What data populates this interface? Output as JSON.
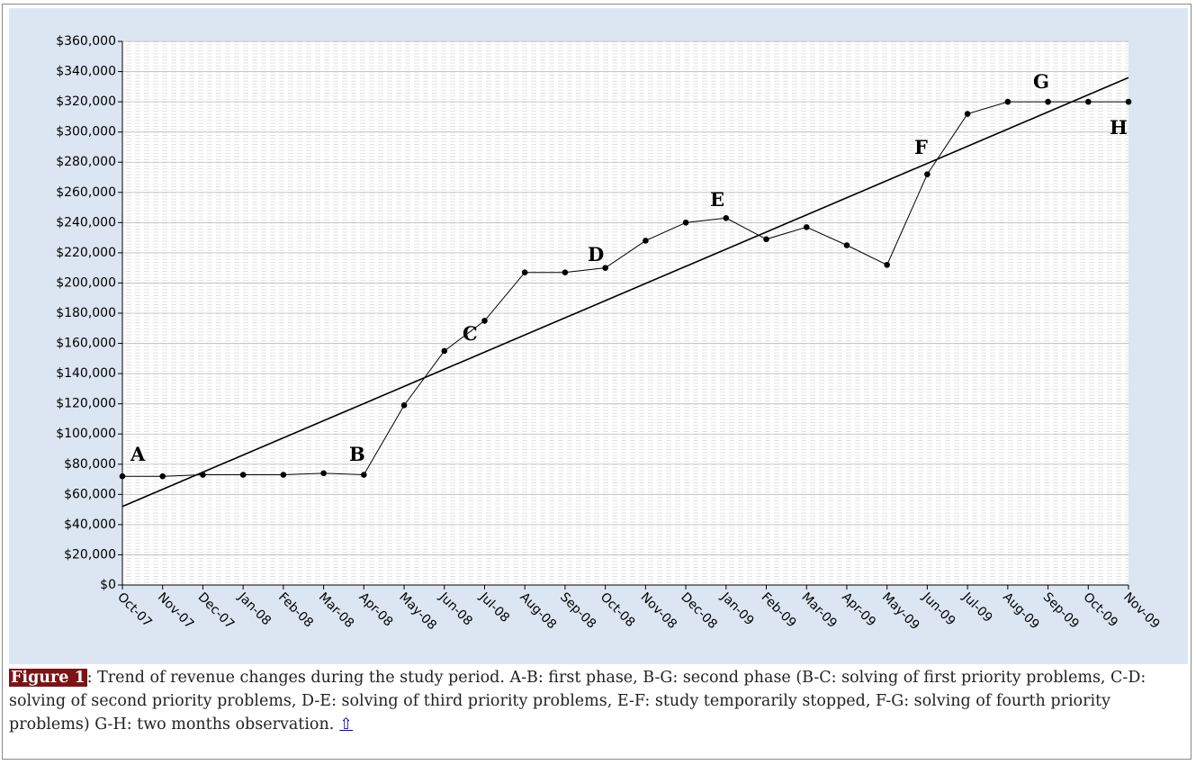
{
  "chart_data": {
    "type": "line",
    "categories": [
      "Oct-07",
      "Nov-07",
      "Dec-07",
      "Jan-08",
      "Feb-08",
      "Mar-08",
      "Apr-08",
      "May-08",
      "Jun-08",
      "Jul-08",
      "Aug-08",
      "Sep-08",
      "Oct-08",
      "Nov-08",
      "Dec-08",
      "Jan-09",
      "Feb-09",
      "Mar-09",
      "Apr-09",
      "May-09",
      "Jun-09",
      "Jul-09",
      "Aug-09",
      "Sep-09",
      "Oct-09",
      "Nov-09"
    ],
    "values": [
      72000,
      72000,
      73000,
      73000,
      73000,
      74000,
      73000,
      119000,
      155000,
      175000,
      207000,
      207000,
      210000,
      228000,
      240000,
      243000,
      229000,
      237000,
      225000,
      212000,
      272000,
      312000,
      320000,
      320000,
      320000,
      320000
    ],
    "color": "#000000",
    "trend": [
      52000,
      336000
    ],
    "annotations": [
      "A",
      "B",
      "C",
      "D",
      "E",
      "F",
      "G",
      "H"
    ],
    "ylim": [
      0,
      360000
    ],
    "yticks": [
      {
        "value": 0,
        "label": "$0"
      },
      {
        "value": 20000,
        "label": "$20,000"
      },
      {
        "value": 40000,
        "label": "$40,000"
      },
      {
        "value": 60000,
        "label": "$60,000"
      },
      {
        "value": 80000,
        "label": "$80,000"
      },
      {
        "value": 100000,
        "label": "$100,000"
      },
      {
        "value": 120000,
        "label": "$120,000"
      },
      {
        "value": 140000,
        "label": "$140,000"
      },
      {
        "value": 160000,
        "label": "$160,000"
      },
      {
        "value": 180000,
        "label": "$180,000"
      },
      {
        "value": 200000,
        "label": "$200,000"
      },
      {
        "value": 220000,
        "label": "$220,000"
      },
      {
        "value": 240000,
        "label": "$240,000"
      },
      {
        "value": 260000,
        "label": "$260,000"
      },
      {
        "value": 280000,
        "label": "$280,000"
      },
      {
        "value": 300000,
        "label": "$300,000"
      },
      {
        "value": 320000,
        "label": "$320,000"
      },
      {
        "value": 340000,
        "label": "$340,000"
      },
      {
        "value": 360000,
        "label": "$360,000"
      }
    ],
    "grid": true
  },
  "caption": {
    "label": "Figure 1",
    "text": ": Trend of revenue changes during the study period.  A-B: first phase, B-G: second phase (B-C: solving of first priority problems, C-D: solving of second priority problems, D-E: solving of third priority problems, E-F: study temporarily stopped, F-G: solving of fourth priority problems) G-H: two months observation.",
    "link": "⇧"
  }
}
